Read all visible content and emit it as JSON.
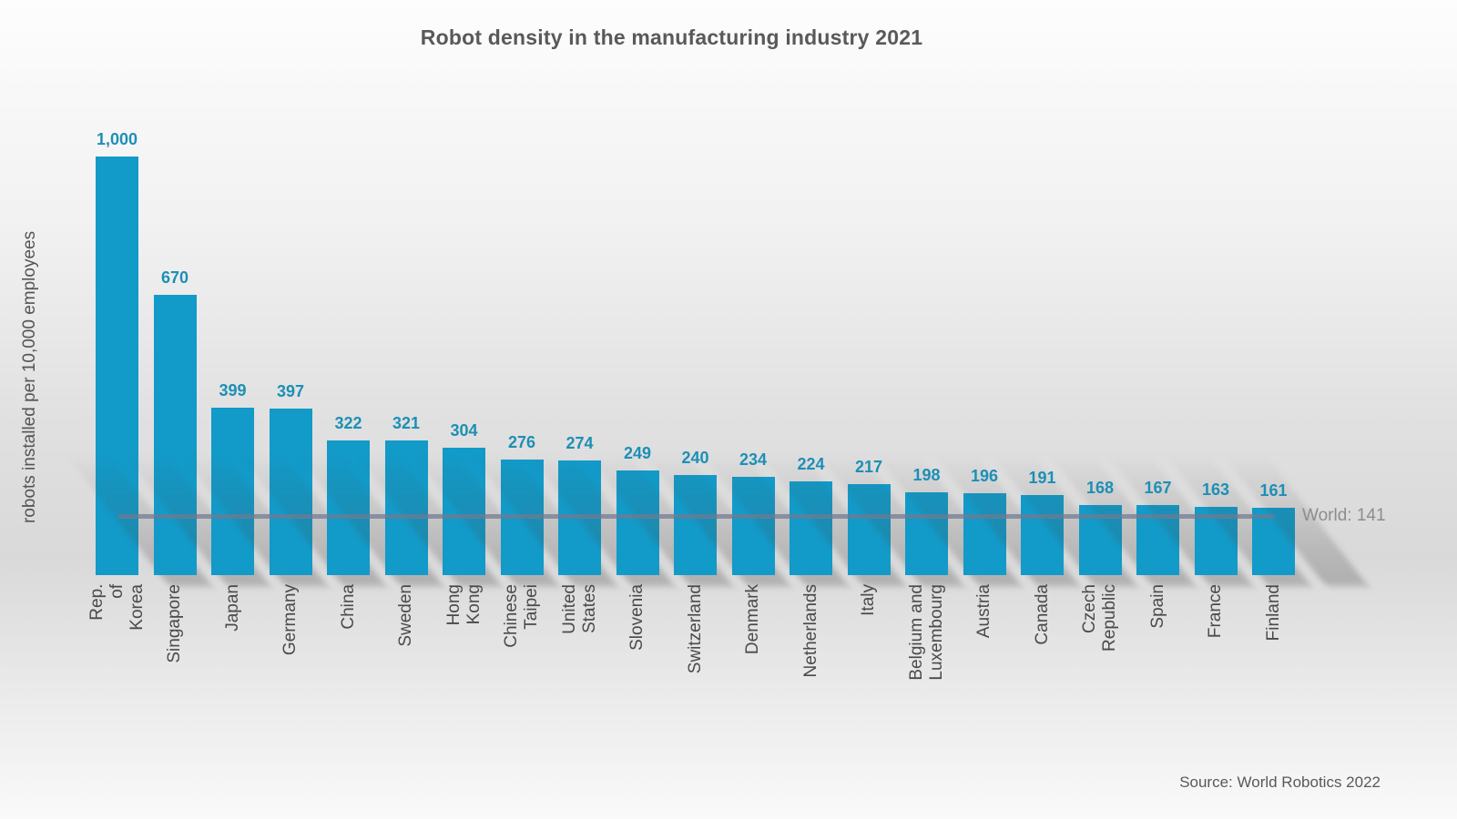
{
  "chart_data": {
    "type": "bar",
    "title": "Robot density in the manufacturing industry 2021",
    "xlabel": "",
    "ylabel": "robots installed per 10,000 employees",
    "categories": [
      "Rep. of Korea",
      "Singapore",
      "Japan",
      "Germany",
      "China",
      "Sweden",
      "Hong Kong",
      "Chinese Taipei",
      "United States",
      "Slovenia",
      "Switzerland",
      "Denmark",
      "Netherlands",
      "Italy",
      "Belgium and\nLuxembourg",
      "Austria",
      "Canada",
      "Czech Republic",
      "Spain",
      "France",
      "Finland"
    ],
    "values": [
      1000,
      670,
      399,
      397,
      322,
      321,
      304,
      276,
      274,
      249,
      240,
      234,
      224,
      217,
      198,
      196,
      191,
      168,
      167,
      163,
      161
    ],
    "annotation": {
      "label": "World: 141",
      "value": 141
    },
    "ylim": [
      0,
      1060
    ],
    "grid": false,
    "legend": "none",
    "colors": {
      "bar": "#129ac8",
      "value_label": "#1d8fb5",
      "world_line": "#707a91",
      "text": "#595959"
    }
  },
  "source": "Source: World Robotics 2022"
}
